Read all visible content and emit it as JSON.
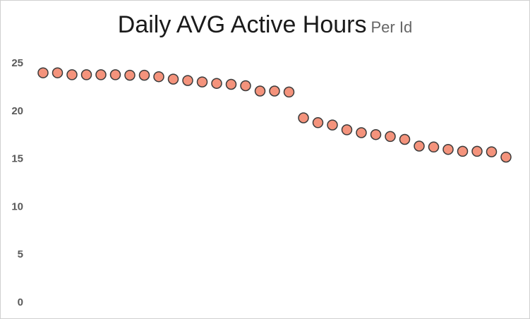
{
  "chart_data": {
    "type": "scatter",
    "title": "Daily AVG Active Hours",
    "subtitle": "Per Id",
    "xlabel": "",
    "ylabel": "",
    "ylim": [
      0,
      25
    ],
    "yticks": [
      "0",
      "5",
      "10",
      "15",
      "20",
      "25"
    ],
    "grid": false,
    "legend": "none",
    "marker_fill": "#F4937C",
    "marker_stroke": "#3A3A3A",
    "x": [
      1,
      2,
      3,
      4,
      5,
      6,
      7,
      8,
      9,
      10,
      11,
      12,
      13,
      14,
      15,
      16,
      17,
      18,
      19,
      20,
      21,
      22,
      23,
      24,
      25,
      26,
      27,
      28,
      29,
      30,
      31,
      32,
      33
    ],
    "series": [
      {
        "values": [
          23.95,
          23.95,
          23.75,
          23.75,
          23.75,
          23.75,
          23.7,
          23.7,
          23.55,
          23.3,
          23.15,
          23.0,
          22.85,
          22.75,
          22.6,
          22.05,
          22.05,
          21.95,
          19.25,
          18.75,
          18.5,
          18.0,
          17.7,
          17.5,
          17.3,
          17.0,
          16.3,
          16.2,
          15.95,
          15.75,
          15.75,
          15.7,
          15.15
        ]
      }
    ]
  }
}
